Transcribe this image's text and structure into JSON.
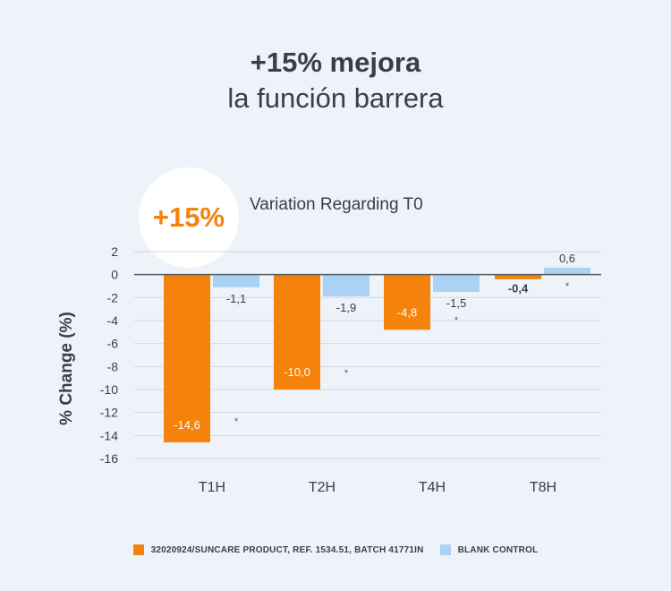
{
  "headline": {
    "line1": "+15% mejora",
    "line2": "la función barrera"
  },
  "badge": {
    "text": "+15%"
  },
  "colors": {
    "product": "#f5820a",
    "control": "#a9d2f5",
    "grid": "#d3dae2",
    "axis": "#555a60"
  },
  "chart_data": {
    "type": "bar",
    "title": "Variation Regarding T0",
    "xlabel": "",
    "ylabel": "% Change (%)",
    "categories": [
      "T1H",
      "T2H",
      "T4H",
      "T8H"
    ],
    "ylim": [
      -16,
      2
    ],
    "yticks": [
      2,
      0,
      -2,
      -4,
      -6,
      -8,
      -10,
      -12,
      -14,
      -16
    ],
    "grid": true,
    "legend_position": "bottom",
    "series": [
      {
        "name": "32020924/SUNCARE PRODUCT, REF. 1534.51, BATCH 41771IN",
        "color": "#f5820a",
        "values": [
          -14.6,
          -10.0,
          -4.8,
          -0.4
        ],
        "labels": [
          "-14,6",
          "-10,0",
          "-4,8",
          "-0,4"
        ]
      },
      {
        "name": "BLANK CONTROL",
        "color": "#a9d2f5",
        "values": [
          -1.1,
          -1.9,
          -1.5,
          0.6
        ],
        "labels": [
          "-1,1",
          "-1,9",
          "-1,5",
          "0,6"
        ]
      }
    ],
    "annotations": [
      "*",
      "*",
      "*",
      "*"
    ]
  }
}
